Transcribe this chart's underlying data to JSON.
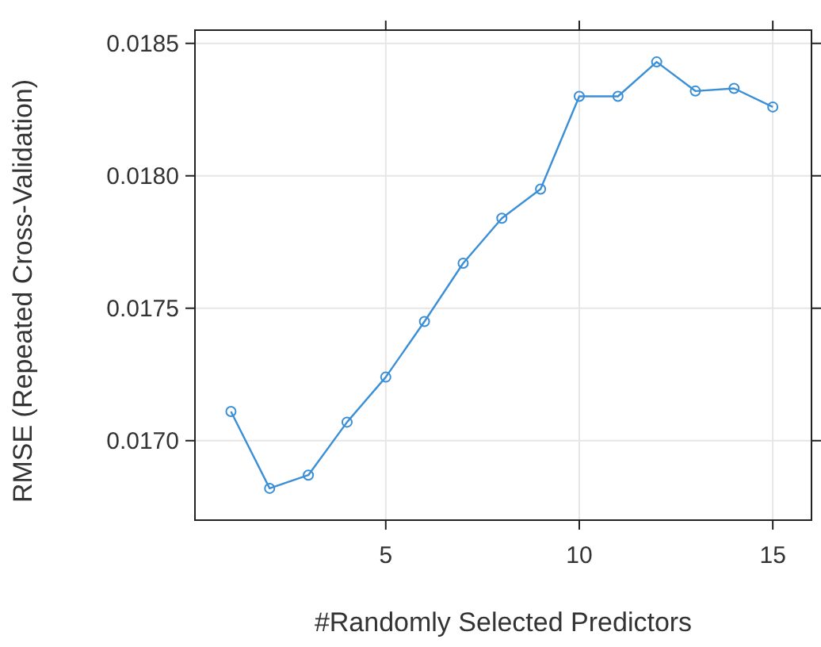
{
  "chart_data": {
    "type": "line",
    "xlabel": "#Randomly Selected Predictors",
    "ylabel": "RMSE (Repeated Cross-Validation)",
    "x": [
      1,
      2,
      3,
      4,
      5,
      6,
      7,
      8,
      9,
      10,
      11,
      12,
      13,
      14,
      15
    ],
    "series": [
      {
        "color": "#3a8fd6",
        "values": [
          0.01711,
          0.01682,
          0.01687,
          0.01707,
          0.01724,
          0.01745,
          0.01767,
          0.01784,
          0.01795,
          0.0183,
          0.0183,
          0.01843,
          0.01832,
          0.01833,
          0.01826
        ]
      }
    ],
    "xlim": [
      0.07,
      16
    ],
    "xticks": [
      5,
      10,
      15
    ],
    "ylim": [
      0.0167,
      0.01855
    ],
    "yticks": [
      {
        "value": 0.017,
        "label": "0.0170"
      },
      {
        "value": 0.0175,
        "label": "0.0175"
      },
      {
        "value": 0.018,
        "label": "0.0180"
      },
      {
        "value": 0.0185,
        "label": "0.0185"
      }
    ],
    "grid": true,
    "marker": "circle",
    "line_style": "solid"
  }
}
